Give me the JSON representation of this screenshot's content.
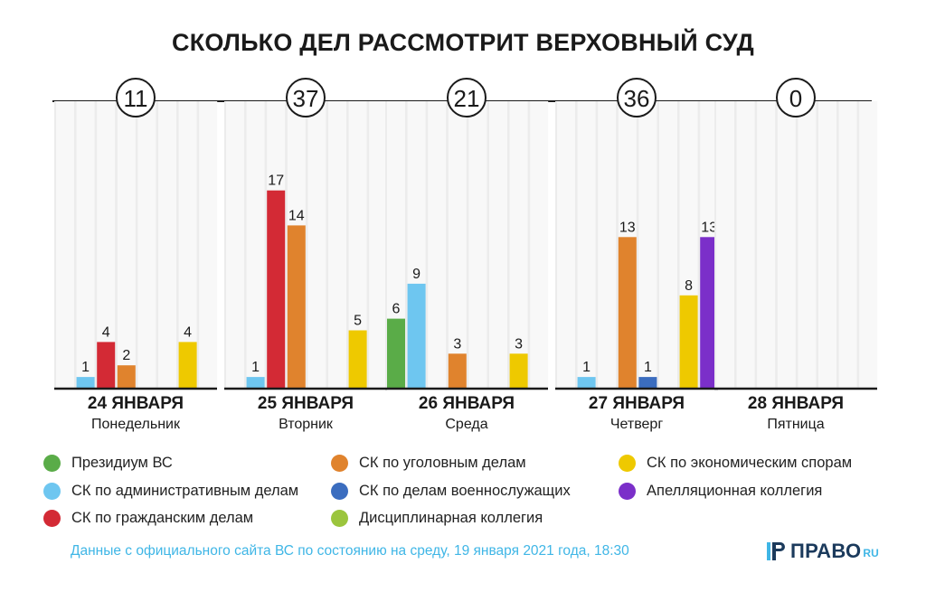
{
  "title": "СКОЛЬКО ДЕЛ РАССМОТРИТ ВЕРХОВНЫЙ СУД",
  "source_note": "Данные с официального сайта ВС по состоянию на среду, 19 января 2021 года, 18:30",
  "logo": {
    "main": "ПРАВО",
    "sub": "RU",
    "icon": "pravo-logo-icon"
  },
  "chart_data": {
    "type": "bar",
    "title": "СКОЛЬКО ДЕЛ РАССМОТРИТ ВЕРХОВНЫЙ СУД",
    "ylim": [
      0,
      18
    ],
    "grid": true,
    "legend_position": "bottom",
    "series": [
      {
        "name": "Президиум ВС",
        "color": "#5aac48"
      },
      {
        "name": "СК по административным делам",
        "color": "#6ec6f0"
      },
      {
        "name": "СК по гражданским делам",
        "color": "#d32a35"
      },
      {
        "name": "СК по уголовным делам",
        "color": "#e0832d"
      },
      {
        "name": "СК по делам военнослужащих",
        "color": "#3b6dbf"
      },
      {
        "name": "Дисциплинарная коллегия",
        "color": "#9bc53d"
      },
      {
        "name": "СК по экономическим спорам",
        "color": "#eec900"
      },
      {
        "name": "Апелляционная коллегия",
        "color": "#7b2fc9"
      }
    ],
    "days": [
      {
        "date": "24 ЯНВАРЯ",
        "weekday": "Понедельник",
        "total": "11",
        "values": [
          0,
          1,
          4,
          2,
          0,
          0,
          4,
          0
        ]
      },
      {
        "date": "25 ЯНВАРЯ",
        "weekday": "Вторник",
        "total": "37",
        "values": [
          0,
          1,
          17,
          14,
          0,
          0,
          5,
          0
        ]
      },
      {
        "date": "26 ЯНВАРЯ",
        "weekday": "Среда",
        "total": "21",
        "values": [
          6,
          9,
          0,
          3,
          0,
          0,
          3,
          0
        ]
      },
      {
        "date": "27 ЯНВАРЯ",
        "weekday": "Четверг",
        "total": "36",
        "values": [
          0,
          1,
          0,
          13,
          1,
          0,
          8,
          13
        ]
      },
      {
        "date": "28 ЯНВАРЯ",
        "weekday": "Пятница",
        "total": "0",
        "values": [
          0,
          0,
          0,
          0,
          0,
          0,
          0,
          0
        ]
      }
    ]
  }
}
